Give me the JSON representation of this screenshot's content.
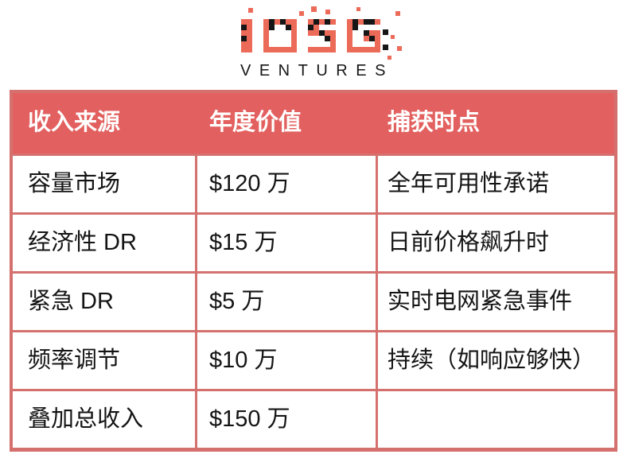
{
  "page": {
    "background": "#ffffff"
  },
  "logo": {
    "brand": "IOSG",
    "subtitle": "VENTURES",
    "coral": "#ec6a58",
    "black": "#161616"
  },
  "table": {
    "headers": [
      "收入来源",
      "年度价值",
      "捕获时点"
    ],
    "rows": [
      {
        "source": "容量市场",
        "value": "$120 万",
        "timing": "全年可用性承诺"
      },
      {
        "source": "经济性 DR",
        "value": "$15 万",
        "timing": "日前价格飙升时"
      },
      {
        "source": "紧急 DR",
        "value": "$5 万",
        "timing": "实时电网紧急事件"
      },
      {
        "source": "频率调节",
        "value": "$10 万",
        "timing": "持续（如响应够快）"
      },
      {
        "source": "叠加总收入",
        "value": "$150 万",
        "timing": ""
      }
    ],
    "colors": {
      "header_bg": "#e2605f",
      "border": "#d4716e",
      "header_text": "#ffffff",
      "cell_text": "#141414"
    }
  },
  "chart_data": {
    "type": "table",
    "title": "",
    "columns": [
      "收入来源",
      "年度价值",
      "捕获时点"
    ],
    "rows": [
      [
        "容量市场",
        "$120 万",
        "全年可用性承诺"
      ],
      [
        "经济性 DR",
        "$15 万",
        "日前价格飙升时"
      ],
      [
        "紧急 DR",
        "$5 万",
        "实时电网紧急事件"
      ],
      [
        "频率调节",
        "$10 万",
        "持续（如响应够快）"
      ],
      [
        "叠加总收入",
        "$150 万",
        ""
      ]
    ],
    "annual_value_wan_usd": [
      120,
      15,
      5,
      10,
      150
    ]
  }
}
